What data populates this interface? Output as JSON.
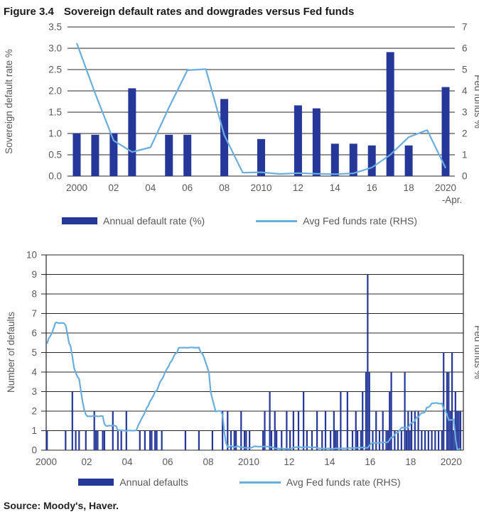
{
  "figure": {
    "title_label": "Figure 3.4",
    "title": "Sovereign default rates and dowgrades versus Fed funds",
    "source": "Source: Moody's, Haver."
  },
  "colors": {
    "bar": "#253799",
    "line": "#6aaedd",
    "grid": "#262626",
    "axis_text": "#595959"
  },
  "chart_data": [
    {
      "type": "bar",
      "ylabel_left": "Sovereign default rate %",
      "ylabel_right": "Fed funds %",
      "ylim_left": [
        0,
        3.5
      ],
      "yticks_left": [
        "0.0",
        "0.5",
        "1.0",
        "1.5",
        "2.0",
        "2.5",
        "3.0",
        "3.5"
      ],
      "ylim_right": [
        0,
        7
      ],
      "yticks_right": [
        "0",
        "1",
        "2",
        "3",
        "4",
        "5",
        "6",
        "7"
      ],
      "categories": [
        "2000",
        "2001",
        "2002",
        "2003",
        "2004",
        "2005",
        "2006",
        "2007",
        "2008",
        "2009",
        "2010",
        "2011",
        "2012",
        "2013",
        "2014",
        "2015",
        "2016",
        "2017",
        "2018",
        "2019",
        "2020"
      ],
      "xtick_positions": [
        0,
        2,
        4,
        6,
        8,
        10,
        12,
        14,
        16,
        18,
        20
      ],
      "xtick_labels": [
        "2000",
        "02",
        "04",
        "06",
        "08",
        "2010",
        "12",
        "14",
        "16",
        "18",
        "2020"
      ],
      "xtick_note": "-Apr.",
      "grid": true,
      "legend_position": "bottom",
      "series": [
        {
          "name": "Annual default rate (%)",
          "type": "bar",
          "axis": "left",
          "values": [
            1.01,
            0.97,
            1.01,
            2.06,
            0,
            0.97,
            0.97,
            0,
            1.81,
            0,
            0.87,
            0,
            1.66,
            1.59,
            0.76,
            0.76,
            0.72,
            2.91,
            0.72,
            0,
            2.09
          ]
        },
        {
          "name": "Avg Fed funds rate (RHS)",
          "type": "line",
          "axis": "right",
          "values": [
            6.24,
            3.88,
            1.67,
            1.13,
            1.35,
            3.22,
            4.97,
            5.02,
            1.92,
            0.16,
            0.18,
            0.1,
            0.14,
            0.11,
            0.09,
            0.13,
            0.4,
            1.0,
            1.83,
            2.16,
            0.38
          ]
        }
      ],
      "legend": [
        "Annual default rate (%)",
        "Avg Fed funds rate (RHS)"
      ]
    },
    {
      "type": "bar",
      "ylabel_left": "Number of defaults",
      "ylabel_right": "Fed funds %",
      "ylim_left": [
        0,
        10
      ],
      "yticks_left": [
        "0",
        "1",
        "2",
        "3",
        "4",
        "5",
        "6",
        "7",
        "8",
        "9",
        "10"
      ],
      "x_range_years": [
        2000,
        2020.6
      ],
      "xtick_years": [
        2000,
        2002,
        2004,
        2006,
        2008,
        2010,
        2012,
        2014,
        2016,
        2018,
        2020
      ],
      "xtick_labels": [
        "2000",
        "02",
        "04",
        "06",
        "08",
        "2010",
        "12",
        "14",
        "16",
        "18",
        "2020"
      ],
      "grid": true,
      "legend_position": "bottom",
      "monthly_start": "2000-01",
      "series": [
        {
          "name": "Annual defaults",
          "type": "bar",
          "axis": "left",
          "values": [
            1,
            0,
            0,
            0,
            0,
            0,
            0,
            0,
            0,
            0,
            0,
            1,
            0,
            0,
            0,
            3,
            0,
            1,
            0,
            1,
            0,
            0,
            0,
            1,
            0,
            0,
            0,
            0,
            2,
            1,
            1,
            0,
            0,
            1,
            1,
            0,
            0,
            0,
            0,
            2,
            0,
            0,
            1,
            0,
            1,
            0,
            0,
            2,
            0,
            0,
            0,
            0,
            0,
            0,
            0,
            1,
            0,
            0,
            1,
            0,
            0,
            1,
            1,
            0,
            1,
            1,
            0,
            0,
            1,
            0,
            0,
            0,
            0,
            0,
            0,
            0,
            0,
            0,
            0,
            0,
            0,
            0,
            1,
            0,
            0,
            0,
            0,
            0,
            0,
            0,
            1,
            0,
            0,
            0,
            0,
            0,
            0,
            0,
            1,
            0,
            0,
            0,
            0,
            0,
            2,
            0,
            0,
            2,
            0,
            1,
            0,
            1,
            1,
            0,
            0,
            2,
            0,
            1,
            1,
            0,
            1,
            0,
            0,
            0,
            0,
            0,
            0,
            0,
            1,
            2,
            0,
            0,
            3,
            1,
            0,
            2,
            1,
            0,
            0,
            1,
            0,
            0,
            2,
            0,
            1,
            0,
            2,
            0,
            0,
            2,
            0,
            0,
            3,
            0,
            1,
            0,
            0,
            1,
            0,
            0,
            2,
            0,
            0,
            1,
            0,
            2,
            0,
            0,
            1,
            0,
            2,
            1,
            1,
            0,
            3,
            0,
            0,
            0,
            3,
            0,
            0,
            1,
            0,
            2,
            1,
            0,
            1,
            3,
            0,
            4,
            9,
            4,
            0,
            1,
            0,
            2,
            0,
            1,
            0,
            2,
            0,
            1,
            1,
            3,
            4,
            0,
            1,
            0,
            1,
            0,
            1,
            0,
            4,
            1,
            2,
            1,
            2,
            0,
            2,
            0,
            2,
            0,
            1,
            0,
            1,
            0,
            1,
            0,
            1,
            0,
            1,
            0,
            1,
            0,
            1,
            5,
            0,
            4,
            4,
            2,
            5,
            1,
            3,
            2,
            2,
            2
          ]
        },
        {
          "name": "Avg Fed funds rate (RHS)",
          "type": "line",
          "axis": "right",
          "values": [
            5.45,
            5.73,
            5.85,
            6.02,
            6.27,
            6.53,
            6.54,
            6.5,
            6.52,
            6.51,
            6.51,
            6.4,
            5.98,
            5.49,
            5.31,
            4.8,
            4.21,
            3.97,
            3.77,
            3.65,
            3.07,
            2.49,
            2.09,
            1.82,
            1.73,
            1.74,
            1.73,
            1.75,
            1.75,
            1.75,
            1.73,
            1.74,
            1.75,
            1.75,
            1.34,
            1.24,
            1.24,
            1.26,
            1.25,
            1.26,
            1.26,
            1.22,
            1.01,
            1.03,
            1.01,
            1.01,
            1.0,
            0.98,
            1.0,
            1.01,
            1.0,
            1.0,
            1.0,
            1.03,
            1.26,
            1.43,
            1.61,
            1.76,
            1.93,
            2.16,
            2.28,
            2.5,
            2.63,
            2.79,
            3.0,
            3.04,
            3.26,
            3.5,
            3.62,
            3.78,
            4.0,
            4.16,
            4.29,
            4.49,
            4.59,
            4.79,
            4.94,
            4.99,
            5.24,
            5.25,
            5.25,
            5.25,
            5.25,
            5.24,
            5.25,
            5.26,
            5.26,
            5.25,
            5.25,
            5.25,
            5.26,
            5.02,
            4.94,
            4.76,
            4.49,
            4.24,
            3.94,
            2.98,
            2.61,
            2.28,
            1.98,
            2.0,
            2.01,
            2.0,
            1.81,
            0.97,
            0.39,
            0.16,
            0.15,
            0.22,
            0.18,
            0.15,
            0.18,
            0.21,
            0.16,
            0.16,
            0.15,
            0.12,
            0.12,
            0.12,
            0.11,
            0.13,
            0.16,
            0.2,
            0.2,
            0.18,
            0.18,
            0.19,
            0.19,
            0.19,
            0.19,
            0.18,
            0.17,
            0.16,
            0.14,
            0.1,
            0.09,
            0.09,
            0.07,
            0.1,
            0.08,
            0.07,
            0.08,
            0.07,
            0.08,
            0.1,
            0.13,
            0.14,
            0.16,
            0.16,
            0.16,
            0.13,
            0.14,
            0.16,
            0.16,
            0.16,
            0.14,
            0.15,
            0.14,
            0.15,
            0.11,
            0.09,
            0.09,
            0.08,
            0.08,
            0.09,
            0.08,
            0.09,
            0.07,
            0.07,
            0.08,
            0.09,
            0.09,
            0.1,
            0.09,
            0.09,
            0.09,
            0.09,
            0.09,
            0.12,
            0.11,
            0.11,
            0.11,
            0.12,
            0.12,
            0.13,
            0.13,
            0.14,
            0.14,
            0.12,
            0.12,
            0.24,
            0.34,
            0.38,
            0.36,
            0.37,
            0.37,
            0.38,
            0.39,
            0.4,
            0.4,
            0.4,
            0.41,
            0.54,
            0.65,
            0.66,
            0.79,
            0.9,
            0.91,
            1.04,
            1.15,
            1.16,
            1.15,
            1.15,
            1.16,
            1.3,
            1.41,
            1.42,
            1.51,
            1.69,
            1.7,
            1.82,
            1.91,
            1.91,
            1.95,
            2.19,
            2.2,
            2.27,
            2.4,
            2.4,
            2.41,
            2.42,
            2.39,
            2.38,
            2.4,
            2.13,
            2.04,
            1.83,
            1.55,
            1.55,
            1.55,
            1.58,
            0.65,
            0.05,
            0.05,
            0.08
          ]
        }
      ],
      "legend": [
        "Annual defaults",
        "Avg Fed funds rate (RHS)"
      ]
    }
  ]
}
